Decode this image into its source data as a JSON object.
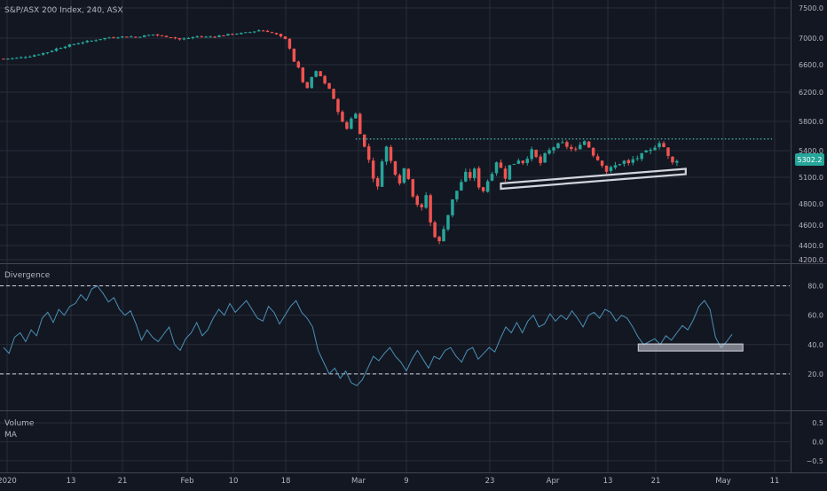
{
  "chart_data": [
    {
      "type": "candlestick",
      "title": "S&P/ASX 200 Index, 240, ASX",
      "y_ticks": [
        4200,
        4400,
        4600,
        4800,
        5100,
        5400,
        5800,
        6200,
        6600,
        7000,
        7500
      ],
      "ylim": [
        4180,
        7600
      ],
      "last_price_label": "5302.2",
      "x_tick_labels": [
        "2020",
        "13",
        "21",
        "Feb",
        "10",
        "18",
        "Mar",
        "9",
        "23",
        "Apr",
        "13",
        "21",
        "May",
        "11"
      ],
      "colors": {
        "up": "#26a69a",
        "down": "#ef5350",
        "resistance": "#4dd0c4",
        "support_band": "#d1d4dc",
        "price_badge": "#26a69a"
      },
      "close_path": [
        [
          0,
          6690
        ],
        [
          3,
          6700
        ],
        [
          6,
          6730
        ],
        [
          8,
          6760
        ],
        [
          10,
          6790
        ],
        [
          12,
          6840
        ],
        [
          14,
          6880
        ],
        [
          16,
          6910
        ],
        [
          18,
          6940
        ],
        [
          20,
          6960
        ],
        [
          22,
          6990
        ],
        [
          24,
          7010
        ],
        [
          26,
          7020
        ],
        [
          28,
          7030
        ],
        [
          30,
          7020
        ],
        [
          32,
          7040
        ],
        [
          34,
          7060
        ],
        [
          36,
          7030
        ],
        [
          38,
          7020
        ],
        [
          40,
          6980
        ],
        [
          42,
          7000
        ],
        [
          44,
          7030
        ],
        [
          46,
          7020
        ],
        [
          48,
          7030
        ],
        [
          50,
          7050
        ],
        [
          52,
          7070
        ],
        [
          54,
          7080
        ],
        [
          56,
          7100
        ],
        [
          58,
          7130
        ],
        [
          60,
          7110
        ],
        [
          62,
          7060
        ],
        [
          64,
          6980
        ],
        [
          65,
          6850
        ],
        [
          66,
          6650
        ],
        [
          67,
          6550
        ],
        [
          68,
          6350
        ],
        [
          69,
          6250
        ],
        [
          70,
          6420
        ],
        [
          71,
          6500
        ],
        [
          72,
          6430
        ],
        [
          73,
          6330
        ],
        [
          74,
          6250
        ],
        [
          75,
          6100
        ],
        [
          76,
          5950
        ],
        [
          77,
          5780
        ],
        [
          78,
          5700
        ],
        [
          79,
          5850
        ],
        [
          80,
          5900
        ],
        [
          81,
          5650
        ],
        [
          82,
          5450
        ],
        [
          83,
          5300
        ],
        [
          84,
          5100
        ],
        [
          85,
          4980
        ],
        [
          86,
          5300
        ],
        [
          87,
          5450
        ],
        [
          88,
          5280
        ],
        [
          89,
          5150
        ],
        [
          90,
          5050
        ],
        [
          91,
          5200
        ],
        [
          92,
          5100
        ],
        [
          93,
          4900
        ],
        [
          94,
          4800
        ],
        [
          95,
          4750
        ],
        [
          96,
          4900
        ],
        [
          97,
          4620
        ],
        [
          98,
          4500
        ],
        [
          99,
          4430
        ],
        [
          100,
          4580
        ],
        [
          101,
          4700
        ],
        [
          102,
          4840
        ],
        [
          103,
          4950
        ],
        [
          104,
          5050
        ],
        [
          105,
          5140
        ],
        [
          106,
          5100
        ],
        [
          107,
          5180
        ],
        [
          108,
          5000
        ],
        [
          109,
          4950
        ],
        [
          110,
          5060
        ],
        [
          111,
          5160
        ],
        [
          112,
          5280
        ],
        [
          113,
          5200
        ],
        [
          114,
          5100
        ],
        [
          115,
          5230
        ],
        [
          116,
          5260
        ],
        [
          117,
          5300
        ],
        [
          118,
          5270
        ],
        [
          119,
          5330
        ],
        [
          120,
          5400
        ],
        [
          121,
          5320
        ],
        [
          122,
          5260
        ],
        [
          123,
          5350
        ],
        [
          124,
          5400
        ],
        [
          125,
          5450
        ],
        [
          126,
          5480
        ],
        [
          127,
          5500
        ],
        [
          128,
          5460
        ],
        [
          129,
          5420
        ],
        [
          130,
          5400
        ],
        [
          131,
          5500
        ],
        [
          132,
          5530
        ],
        [
          133,
          5450
        ],
        [
          134,
          5360
        ],
        [
          135,
          5300
        ],
        [
          136,
          5250
        ],
        [
          137,
          5170
        ],
        [
          138,
          5200
        ],
        [
          139,
          5230
        ],
        [
          140,
          5260
        ],
        [
          141,
          5280
        ],
        [
          142,
          5250
        ],
        [
          143,
          5300
        ],
        [
          144,
          5320
        ],
        [
          145,
          5350
        ],
        [
          146,
          5380
        ],
        [
          147,
          5400
        ],
        [
          148,
          5460
        ],
        [
          149,
          5520
        ],
        [
          150,
          5450
        ],
        [
          151,
          5330
        ],
        [
          152,
          5260
        ],
        [
          153,
          5300
        ]
      ],
      "resistance_level": 5560,
      "support_line": {
        "from": [
          113,
          5000
        ],
        "to": [
          155,
          5165
        ]
      },
      "n_bars": 154,
      "bar_range": [
        0,
        175
      ]
    },
    {
      "type": "line",
      "title": "Divergence",
      "y_ticks": [
        20.0,
        40.0,
        60.0,
        80.0
      ],
      "ylim": [
        0,
        90
      ],
      "reference_lines": [
        20,
        80
      ],
      "colors": {
        "line": "#4a90b5",
        "band": "#d1d4dc",
        "dash": "#d1d4dc"
      },
      "values": [
        38,
        34,
        45,
        48,
        42,
        50,
        46,
        58,
        62,
        55,
        64,
        60,
        66,
        68,
        74,
        70,
        78,
        80,
        75,
        69,
        72,
        64,
        60,
        63,
        54,
        43,
        50,
        45,
        42,
        47,
        52,
        40,
        36,
        44,
        48,
        55,
        46,
        50,
        58,
        64,
        60,
        68,
        62,
        66,
        70,
        64,
        58,
        56,
        66,
        62,
        54,
        60,
        66,
        70,
        62,
        58,
        52,
        36,
        28,
        20,
        24,
        17,
        22,
        14,
        12,
        16,
        24,
        32,
        29,
        34,
        38,
        32,
        28,
        22,
        30,
        36,
        30,
        24,
        32,
        30,
        36,
        38,
        32,
        28,
        36,
        38,
        30,
        34,
        38,
        35,
        44,
        52,
        48,
        55,
        48,
        56,
        60,
        52,
        54,
        61,
        56,
        60,
        57,
        63,
        58,
        52,
        60,
        62,
        58,
        64,
        62,
        56,
        60,
        58,
        52,
        45,
        40,
        42,
        44,
        40,
        46,
        43,
        48,
        53,
        50,
        57,
        66,
        70,
        64,
        45,
        38,
        42,
        47
      ],
      "band": {
        "from_index": 115,
        "to_index": 133,
        "y": 38
      }
    },
    {
      "type": "line",
      "title": "Volume",
      "subtitle": "MA",
      "y_ticks": [
        -0.5,
        0.0,
        0.5
      ],
      "ylim": [
        -0.62,
        0.62
      ]
    }
  ]
}
